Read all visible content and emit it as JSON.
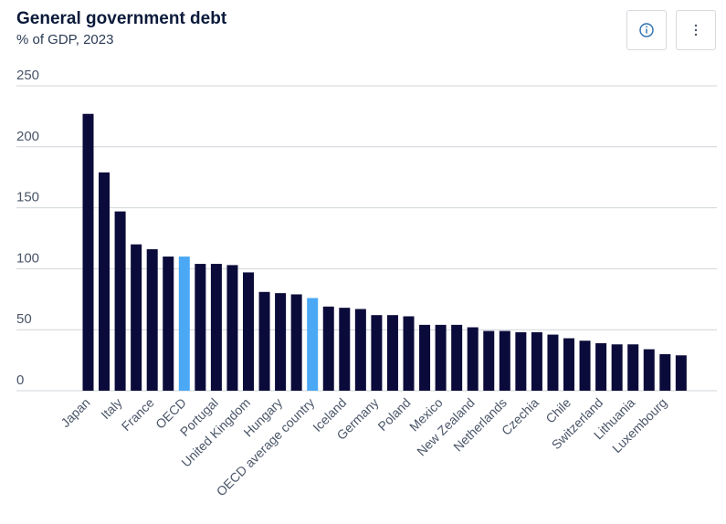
{
  "header": {
    "title": "General government debt",
    "subtitle": "% of GDP, 2023"
  },
  "toolbar": {
    "info_icon": "info-icon",
    "more_icon": "more-vertical-icon"
  },
  "colors": {
    "bar": "#0b0b3b",
    "highlight": "#4aa8f5",
    "grid": "#cfd4da",
    "text": "#4a5568"
  },
  "chart_data": {
    "type": "bar",
    "title": "General government debt",
    "subtitle": "% of GDP, 2023",
    "xlabel": "",
    "ylabel": "",
    "ylim": [
      0,
      250
    ],
    "yticks": [
      0,
      50,
      100,
      150,
      200,
      250
    ],
    "grid": true,
    "categories": [
      "Japan",
      "",
      "Italy",
      "",
      "France",
      "",
      "OECD",
      "",
      "Portugal",
      "",
      "United Kingdom",
      "",
      "Hungary",
      "",
      "OECD average country",
      "",
      "Iceland",
      "",
      "Germany",
      "",
      "Poland",
      "",
      "Mexico",
      "",
      "New Zealand",
      "",
      "Netherlands",
      "",
      "Czechia",
      "",
      "Chile",
      "",
      "Switzerland",
      "",
      "Lithuania",
      "",
      "Luxembourg",
      ""
    ],
    "values": [
      227,
      179,
      147,
      120,
      116,
      110,
      110,
      104,
      104,
      103,
      97,
      81,
      80,
      79,
      76,
      69,
      68,
      67,
      62,
      62,
      61,
      54,
      54,
      54,
      52,
      49,
      49,
      48,
      48,
      46,
      43,
      41,
      39,
      38,
      38,
      34,
      30,
      29
    ],
    "highlighted": [
      "OECD",
      "OECD average country"
    ]
  }
}
